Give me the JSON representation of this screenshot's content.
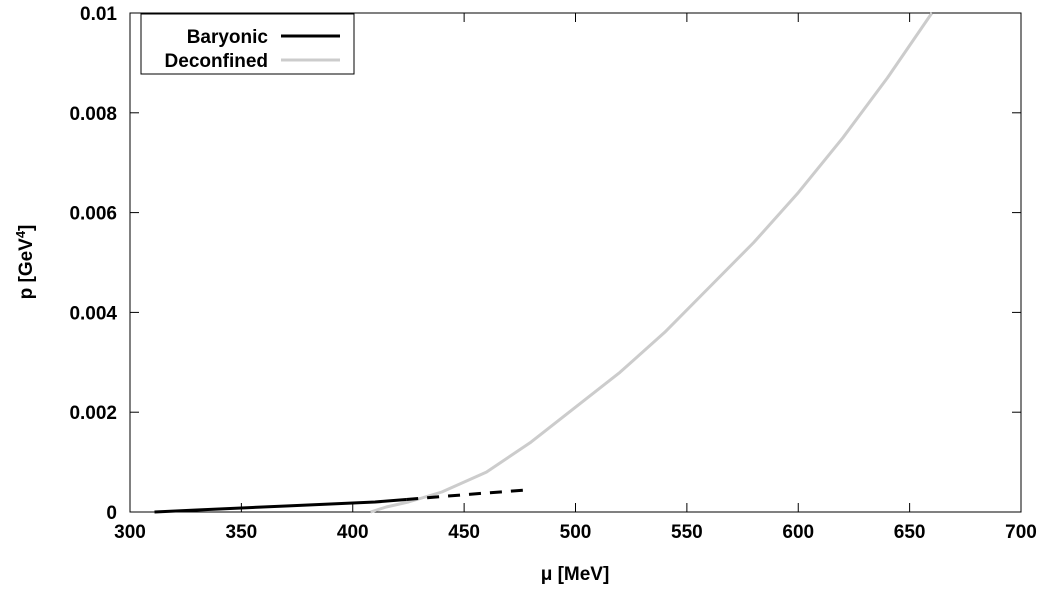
{
  "chart_data": {
    "type": "line",
    "title": "",
    "xlabel": "μ [MeV]",
    "ylabel_main": "p [GeV",
    "ylabel_sup": "4",
    "ylabel_close": "]",
    "xlim": [
      300,
      700
    ],
    "ylim": [
      0,
      0.01
    ],
    "xticks": [
      300,
      350,
      400,
      450,
      500,
      550,
      600,
      650,
      700
    ],
    "xtick_labels": [
      "300",
      "350",
      "400",
      "450",
      "500",
      "550",
      "600",
      "650",
      "700"
    ],
    "yticks": [
      0,
      0.002,
      0.004,
      0.006,
      0.008,
      0.01
    ],
    "ytick_labels": [
      "0",
      "0.002",
      "0.004",
      "0.006",
      "0.008",
      "0.01"
    ],
    "grid": false,
    "legend_position": "top-left",
    "series": [
      {
        "name": "Baryonic",
        "color": "#000000",
        "style": "solid",
        "x": [
          311,
          330,
          350,
          370,
          390,
          410,
          424
        ],
        "y": [
          0.0,
          4e-05,
          8e-05,
          0.00012,
          0.00016,
          0.0002,
          0.00025
        ]
      },
      {
        "name": "",
        "color": "#000000",
        "style": "dashed",
        "x": [
          424,
          440,
          460,
          478
        ],
        "y": [
          0.00025,
          0.00031,
          0.00038,
          0.00044
        ]
      },
      {
        "name": "Deconfined",
        "color": "#cccccc",
        "style": "solid",
        "x": [
          408,
          415,
          425,
          440,
          460,
          480,
          500,
          520,
          540,
          560,
          580,
          600,
          620,
          640,
          660
        ],
        "y": [
          0.0,
          0.0001,
          0.0002,
          0.0004,
          0.0008,
          0.0014,
          0.0021,
          0.0028,
          0.0036,
          0.0045,
          0.0054,
          0.0064,
          0.0075,
          0.0087,
          0.01
        ]
      }
    ]
  }
}
